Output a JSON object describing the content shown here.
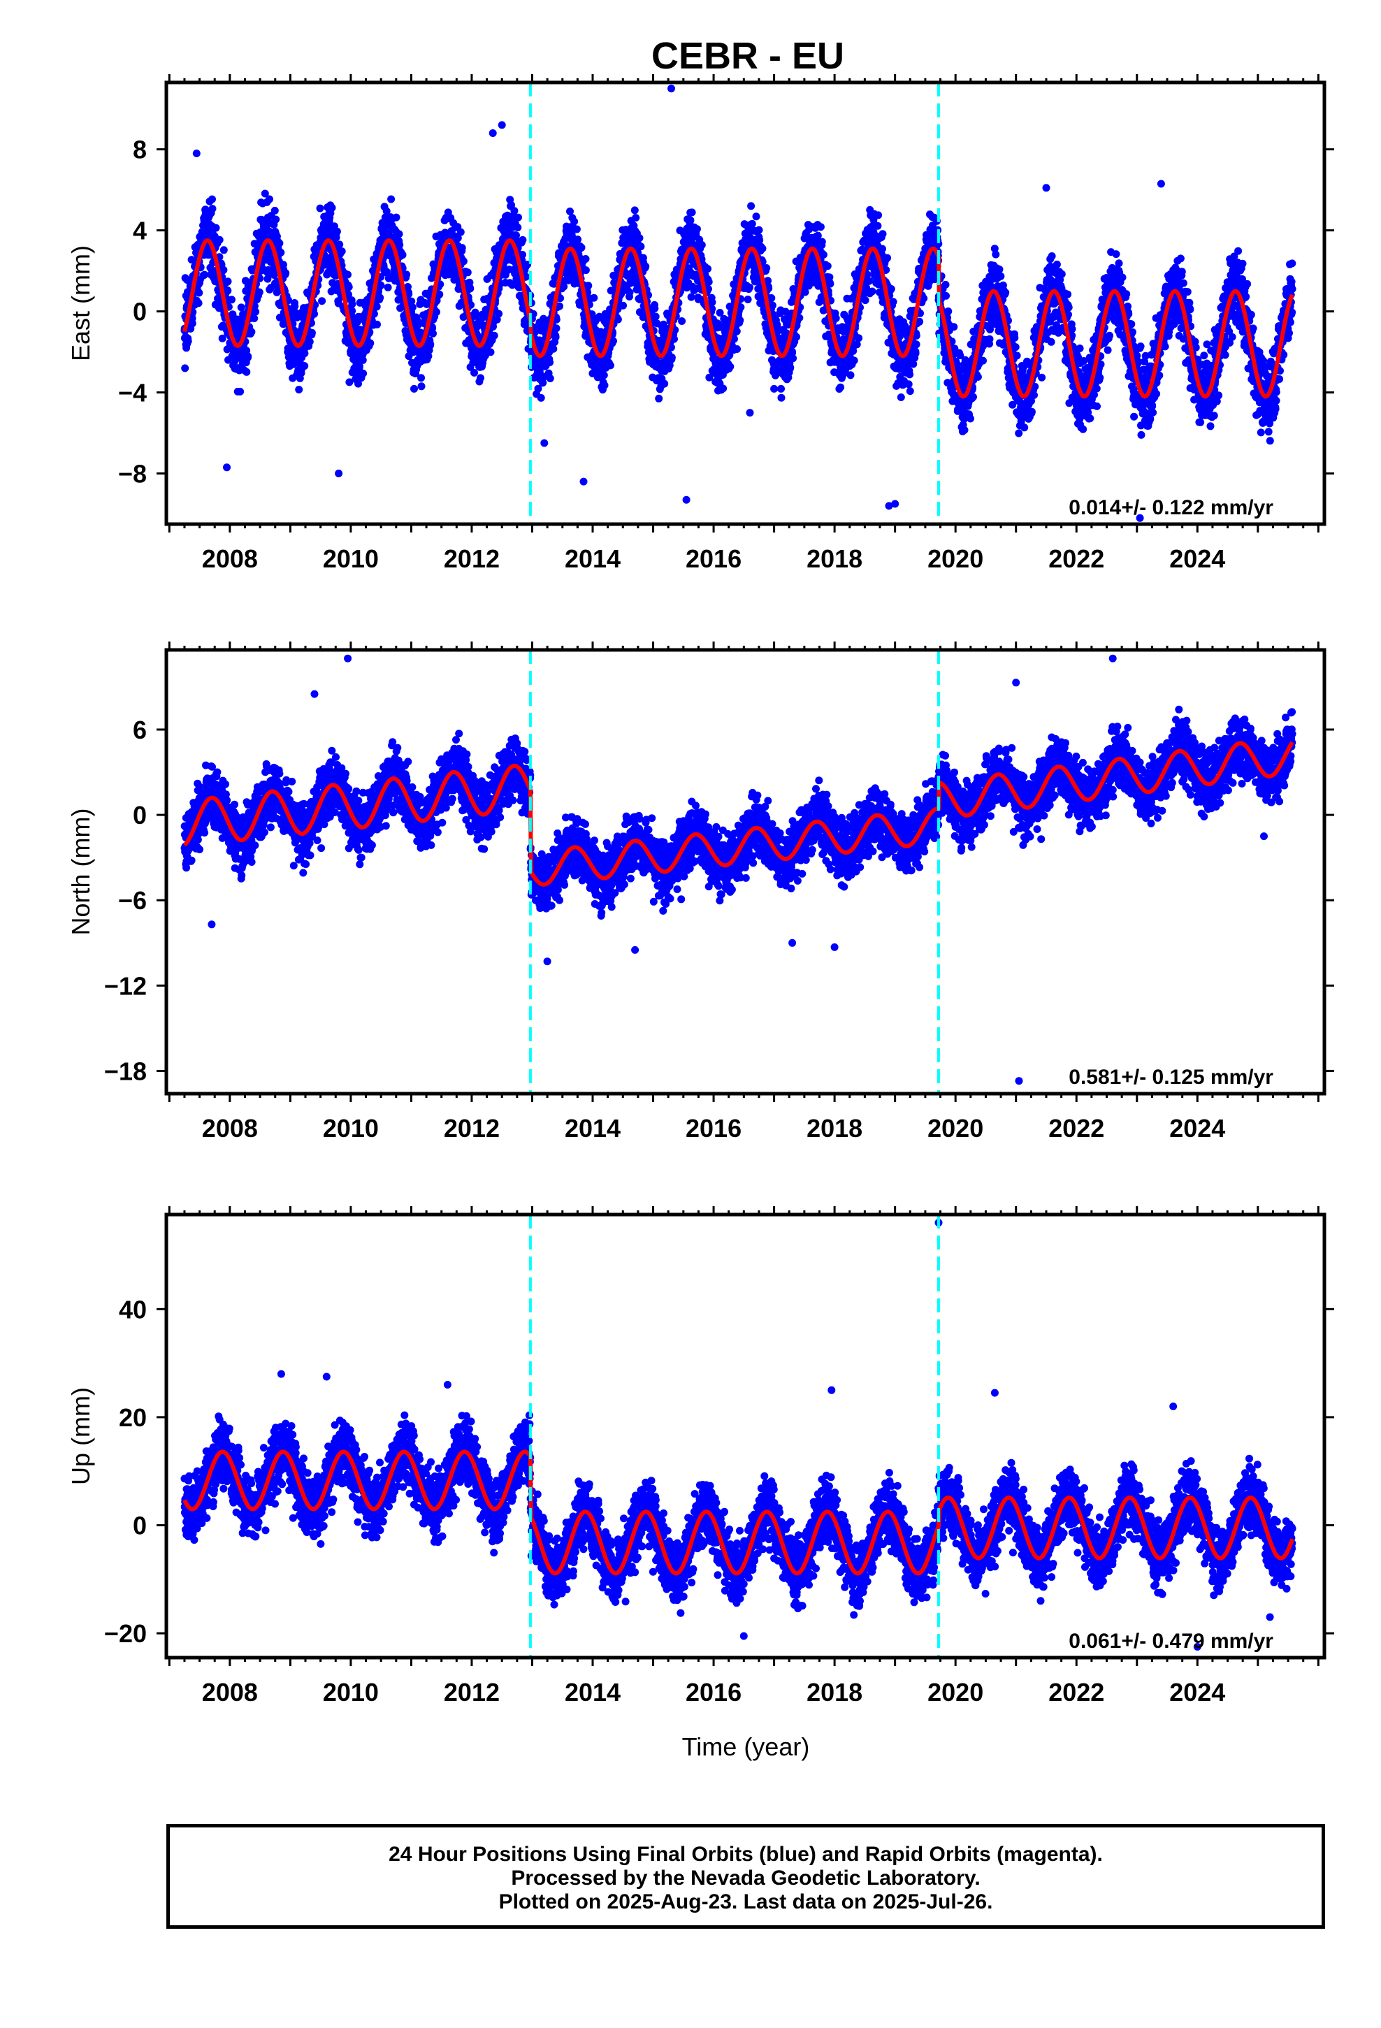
{
  "chart_data": {
    "type": "scatter",
    "title": "CEBR - EU",
    "xlabel": "Time (year)",
    "x_ticks": [
      "2008",
      "2010",
      "2012",
      "2014",
      "2016",
      "2018",
      "2020",
      "2022",
      "2024"
    ],
    "xlim": [
      2006.95,
      2026.1
    ],
    "data_start": 2007.25,
    "data_end": 2025.57,
    "marker_color": "#0000ff",
    "model_color": "#ff0000",
    "step_color": "#00ffff",
    "steps": [
      2012.97,
      2019.72
    ],
    "panels": [
      {
        "name": "east",
        "ylabel": "East (mm)",
        "ylim": [
          -10.5,
          11.3
        ],
        "yticks": [
          -8,
          -4,
          0,
          4,
          8
        ],
        "ytick_labels": [
          "−8",
          "−4",
          "0",
          "4",
          "8"
        ],
        "rate_text": "0.014+/- 0.122 mm/yr",
        "segments": [
          {
            "start": 2007.25,
            "end": 2012.97,
            "offset": 0.9,
            "amplitude": 2.6
          },
          {
            "start": 2012.97,
            "end": 2019.72,
            "offset": 0.45,
            "amplitude": 2.65
          },
          {
            "start": 2019.72,
            "end": 2025.57,
            "offset": -1.6,
            "amplitude": 2.6
          }
        ],
        "phase": 0.38,
        "noise": 1.3,
        "outliers": [
          [
            2007.45,
            7.8
          ],
          [
            2007.95,
            -7.7
          ],
          [
            2009.8,
            -8.0
          ],
          [
            2012.35,
            8.8
          ],
          [
            2012.5,
            9.2
          ],
          [
            2013.2,
            -6.5
          ],
          [
            2013.85,
            -8.4
          ],
          [
            2015.3,
            11.0
          ],
          [
            2015.55,
            -9.3
          ],
          [
            2016.6,
            -5.0
          ],
          [
            2018.9,
            -9.6
          ],
          [
            2019.0,
            -9.5
          ],
          [
            2021.5,
            6.1
          ],
          [
            2023.05,
            -10.2
          ],
          [
            2023.4,
            6.3
          ]
        ]
      },
      {
        "name": "north",
        "ylabel": "North (mm)",
        "ylim": [
          -19.6,
          11.6
        ],
        "yticks": [
          -18,
          -12,
          -6,
          0,
          6
        ],
        "ytick_labels": [
          "−18",
          "−12",
          "−6",
          "0",
          "6"
        ],
        "rate_text": "0.581+/- 0.125 mm/yr",
        "segments": [
          {
            "start": 2007.25,
            "end": 2012.97,
            "offset": -0.6,
            "amplitude": 1.6,
            "trend": 0.45
          },
          {
            "start": 2012.97,
            "end": 2019.72,
            "offset": -3.8,
            "amplitude": 1.2,
            "trend": 0.45
          },
          {
            "start": 2019.72,
            "end": 2025.57,
            "offset": 1.0,
            "amplitude": 1.3,
            "trend": 0.55
          }
        ],
        "phase": 0.45,
        "noise": 1.5,
        "outliers": [
          [
            2009.95,
            11.0
          ],
          [
            2009.4,
            8.5
          ],
          [
            2007.7,
            -7.7
          ],
          [
            2013.25,
            -10.3
          ],
          [
            2014.7,
            -9.5
          ],
          [
            2017.3,
            -9.0
          ],
          [
            2018.0,
            -9.3
          ],
          [
            2021.0,
            9.3
          ],
          [
            2021.05,
            -18.7
          ],
          [
            2022.6,
            11.0
          ],
          [
            2025.1,
            -1.5
          ]
        ]
      },
      {
        "name": "up",
        "ylabel": "Up (mm)",
        "ylim": [
          -24.5,
          57.5
        ],
        "yticks": [
          -20,
          0,
          20,
          40
        ],
        "ytick_labels": [
          "−20",
          "0",
          "20",
          "40"
        ],
        "rate_text": "0.061+/- 0.479 mm/yr",
        "segments": [
          {
            "start": 2007.25,
            "end": 2012.97,
            "offset": 8.3,
            "amplitude": 5.3
          },
          {
            "start": 2012.97,
            "end": 2019.72,
            "offset": -3.2,
            "amplitude": 5.7
          },
          {
            "start": 2019.72,
            "end": 2025.57,
            "offset": -0.5,
            "amplitude": 5.6
          }
        ],
        "phase": 0.63,
        "noise": 4.3,
        "outliers": [
          [
            2008.85,
            28.0
          ],
          [
            2009.6,
            27.5
          ],
          [
            2011.6,
            26.0
          ],
          [
            2017.95,
            25.0
          ],
          [
            2019.72,
            56.0
          ],
          [
            2020.65,
            24.5
          ],
          [
            2023.6,
            22.0
          ],
          [
            2024.0,
            -22.5
          ],
          [
            2016.5,
            -20.5
          ],
          [
            2025.2,
            -17.0
          ]
        ]
      }
    ]
  },
  "footer": {
    "line1": "24 Hour Positions Using Final Orbits (blue) and Rapid Orbits (magenta).",
    "line2": "Processed by the Nevada Geodetic Laboratory.",
    "line3": "Plotted on 2025-Aug-23. Last data on 2025-Jul-26."
  }
}
